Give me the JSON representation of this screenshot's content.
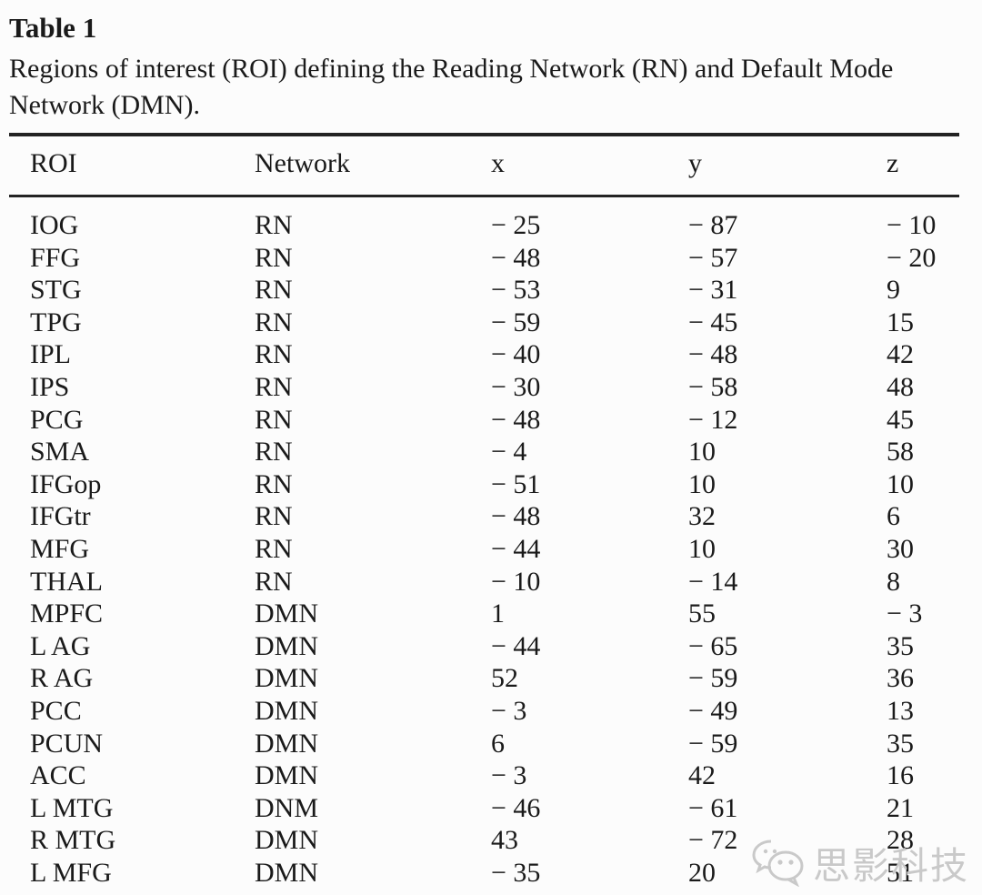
{
  "page": {
    "title": "Table 1",
    "caption": "Regions of interest (ROI) defining the Reading Network (RN) and Default Mode Network (DMN).",
    "background": "#fcfcfc",
    "text_color": "#1a1a1a",
    "rule_color": "#232323"
  },
  "table": {
    "columns": [
      "ROI",
      "Network",
      "x",
      "y",
      "z"
    ],
    "rows": [
      [
        "IOG",
        "RN",
        "− 25",
        "− 87",
        "− 10"
      ],
      [
        "FFG",
        "RN",
        "− 48",
        "− 57",
        "− 20"
      ],
      [
        "STG",
        "RN",
        "− 53",
        "− 31",
        "9"
      ],
      [
        "TPG",
        "RN",
        "− 59",
        "− 45",
        "15"
      ],
      [
        "IPL",
        "RN",
        "− 40",
        "− 48",
        "42"
      ],
      [
        "IPS",
        "RN",
        "− 30",
        "− 58",
        "48"
      ],
      [
        "PCG",
        "RN",
        "− 48",
        "− 12",
        "45"
      ],
      [
        "SMA",
        "RN",
        "− 4",
        "10",
        "58"
      ],
      [
        "IFGop",
        "RN",
        "− 51",
        "10",
        "10"
      ],
      [
        "IFGtr",
        "RN",
        "− 48",
        "32",
        "6"
      ],
      [
        "MFG",
        "RN",
        "− 44",
        "10",
        "30"
      ],
      [
        "THAL",
        "RN",
        "− 10",
        "− 14",
        "8"
      ],
      [
        "MPFC",
        "DMN",
        "1",
        "55",
        "− 3"
      ],
      [
        "L AG",
        "DMN",
        "− 44",
        "− 65",
        "35"
      ],
      [
        "R AG",
        "DMN",
        "52",
        "− 59",
        "36"
      ],
      [
        "PCC",
        "DMN",
        "− 3",
        "− 49",
        "13"
      ],
      [
        "PCUN",
        "DMN",
        "6",
        "− 59",
        "35"
      ],
      [
        "ACC",
        "DMN",
        "− 3",
        "42",
        "16"
      ],
      [
        "L MTG",
        "DNM",
        "− 46",
        "− 61",
        "21"
      ],
      [
        "R MTG",
        "DMN",
        "43",
        "− 72",
        "28"
      ],
      [
        "L MFG",
        "DMN",
        "− 35",
        "20",
        "51"
      ]
    ]
  },
  "watermark": {
    "label": "思影科技",
    "icon": "wechat-logo-icon",
    "color": "#c9c9c9"
  }
}
